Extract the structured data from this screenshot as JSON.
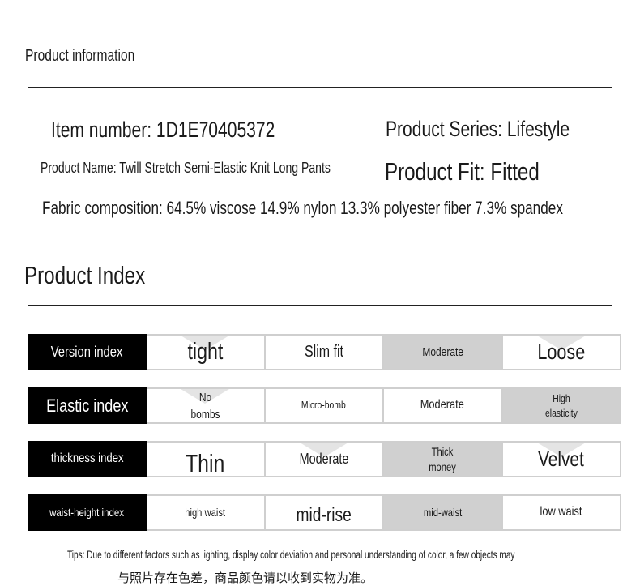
{
  "info": {
    "section_title": "Product information",
    "item_number": "Item number: 1D1E70405372",
    "product_series": "Product Series: Lifestyle",
    "product_name": "Product Name: Twill Stretch Semi-Elastic Knit Long Pants",
    "product_fit": "Product Fit: Fitted",
    "fabric": "Fabric composition: 64.5% viscose 14.9% nylon 13.3% polyester fiber 7.3% spandex"
  },
  "index": {
    "section_title": "Product Index",
    "rows": [
      {
        "label": "Version index",
        "cells": [
          "tight",
          "Slim fit",
          "Moderate",
          "Loose"
        ]
      },
      {
        "label": "Elastic index",
        "cells": [
          "No\nbombs",
          "Micro-bomb",
          "Moderate",
          "High\nelasticity"
        ]
      },
      {
        "label": "thickness index",
        "cells": [
          "Thin",
          "Moderate",
          "Thick\nmoney",
          "Velvet"
        ]
      },
      {
        "label": "waist-height index",
        "cells": [
          "high waist",
          "mid-rise",
          "mid-waist",
          "low waist"
        ]
      }
    ]
  },
  "tips": {
    "line1": "Tips: Due to different factors such as lighting, display color deviation and personal understanding of color, a few objects may",
    "line2": "与照片存在色差，商品颜色请以收到实物为准。"
  },
  "colors": {
    "label_bg": "#000000",
    "highlight_cell": "#d0d0d0",
    "border": "#cfcfcf"
  }
}
